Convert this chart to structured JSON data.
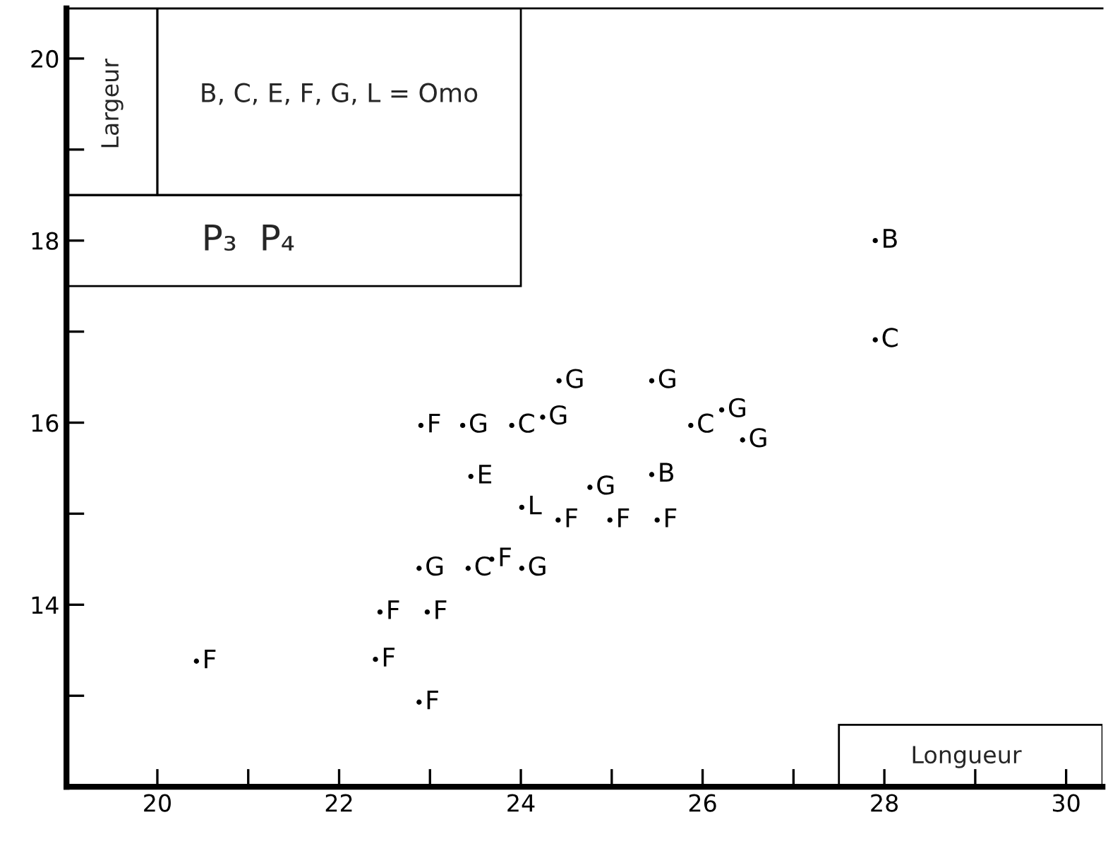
{
  "chart_data": {
    "type": "scatter",
    "xlabel": "Longueur",
    "ylabel": "Largeur",
    "annotations": [
      "B, C, E, F, G, L = Omo",
      "P₃  P₄"
    ],
    "xlim": [
      19,
      30.4
    ],
    "ylim": [
      12,
      20.55
    ],
    "xticks": [
      20,
      {
        "value": 21,
        "label": null
      },
      22,
      {
        "value": 23,
        "label": null
      },
      24,
      {
        "value": 25,
        "label": null
      },
      26,
      {
        "value": 27,
        "label": null
      },
      28,
      {
        "value": 29,
        "label": null
      },
      30
    ],
    "yticks": [
      {
        "value": 13,
        "label": null
      },
      14,
      {
        "value": 15,
        "label": null
      },
      16,
      {
        "value": 17,
        "label": null
      },
      18,
      {
        "value": 19,
        "label": null
      },
      20
    ],
    "grid": false,
    "legend": false,
    "series": [
      {
        "name": "B",
        "color": "#000000",
        "x": [
          25.44,
          27.9
        ],
        "values": [
          15.43,
          18.0
        ]
      },
      {
        "name": "C",
        "color": "#000000",
        "x": [
          23.42,
          23.9,
          25.87,
          27.9
        ],
        "values": [
          14.4,
          15.97,
          15.97,
          16.91
        ]
      },
      {
        "name": "E",
        "color": "#000000",
        "x": [
          23.45
        ],
        "values": [
          15.41
        ]
      },
      {
        "name": "F",
        "color": "#000000",
        "x": [
          20.43,
          22.4,
          22.88,
          22.45,
          22.97,
          23.68,
          24.41,
          24.98,
          25.5,
          22.9
        ],
        "values": [
          13.38,
          13.4,
          12.93,
          13.92,
          13.92,
          14.5,
          14.93,
          14.93,
          14.93,
          15.97
        ]
      },
      {
        "name": "G",
        "color": "#000000",
        "x": [
          22.88,
          24.01,
          24.76,
          23.36,
          24.24,
          24.42,
          25.44,
          26.21,
          26.44
        ],
        "values": [
          14.4,
          14.4,
          15.29,
          15.97,
          16.06,
          16.46,
          16.46,
          16.14,
          15.81
        ]
      },
      {
        "name": "L",
        "color": "#000000",
        "x": [
          24.01
        ],
        "values": [
          15.07
        ]
      }
    ]
  }
}
